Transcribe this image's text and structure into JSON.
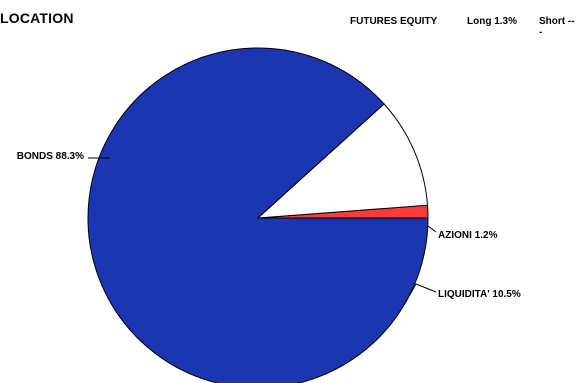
{
  "header": {
    "title": "LOCATION",
    "futures_label": "FUTURES EQUITY",
    "long_label": "Long 1.3%",
    "short_label": "Short ---"
  },
  "chart_data": {
    "type": "pie",
    "title": "LOCATION",
    "slices": [
      {
        "label": "BONDS 88.3%",
        "name": "BONDS",
        "value": 88.3,
        "color": "#1b36b0"
      },
      {
        "label": "AZIONI 1.2%",
        "name": "AZIONI",
        "value": 1.2,
        "color": "#ff3a3a"
      },
      {
        "label": "LIQUIDITA' 10.5%",
        "name": "LIQUIDITA'",
        "value": 10.5,
        "color": "#ffffff"
      }
    ],
    "legend": false
  }
}
